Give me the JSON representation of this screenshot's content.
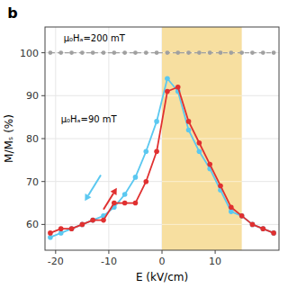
{
  "chart_data": {
    "type": "line",
    "panel_label": "b",
    "xlabel": "E (kV/cm)",
    "ylabel": "M/Mₛ (%)",
    "xlim": [
      -22,
      22
    ],
    "ylim": [
      54,
      106
    ],
    "xticks": [
      -20,
      -10,
      0,
      10
    ],
    "yticks": [
      60,
      70,
      80,
      90,
      100
    ],
    "x": [
      -21,
      -19,
      -17,
      -15,
      -13,
      -11,
      -9,
      -7,
      -5,
      -3,
      -1,
      1,
      3,
      5,
      7,
      9,
      11,
      13,
      15,
      17,
      19,
      21
    ],
    "series": [
      {
        "color": "#a0a0a0",
        "line_style": "dashed",
        "marker": "circle",
        "values": [
          100,
          100,
          100,
          100,
          100,
          100,
          100,
          100,
          100,
          100,
          100,
          100,
          100,
          100,
          100,
          100,
          100,
          100,
          100,
          100,
          100,
          100
        ]
      },
      {
        "color": "#5bc8f0",
        "line_style": "solid",
        "marker": "circle",
        "values": [
          57,
          58,
          59,
          60,
          61,
          62,
          64,
          67,
          71,
          77,
          84,
          94,
          91,
          82,
          77,
          73,
          68,
          63,
          62,
          60,
          59,
          58
        ]
      },
      {
        "color": "#e03030",
        "line_style": "solid",
        "marker": "circle",
        "values": [
          58,
          59,
          59,
          60,
          61,
          61,
          65,
          65,
          65,
          70,
          77,
          91,
          92,
          84,
          79,
          74,
          69,
          64,
          62,
          60,
          59,
          58
        ]
      }
    ],
    "highlight": {
      "xmin": 0,
      "xmax": 15,
      "color": "#f7dfa0"
    },
    "arrows": [
      {
        "x": [
          -11.5,
          -14.5
        ],
        "y": [
          71.5,
          65.5
        ],
        "color": "#5bc8f0"
      },
      {
        "x": [
          -11,
          -8.5
        ],
        "y": [
          63.5,
          68.5
        ],
        "color": "#e03030"
      }
    ],
    "annotations": [
      {
        "text": "μ₀Hₐ=200 mT",
        "x": -18.5,
        "y": 103.2
      },
      {
        "text": "μ₀Hₐ=90 mT",
        "x": -19,
        "y": 84.5
      }
    ]
  }
}
